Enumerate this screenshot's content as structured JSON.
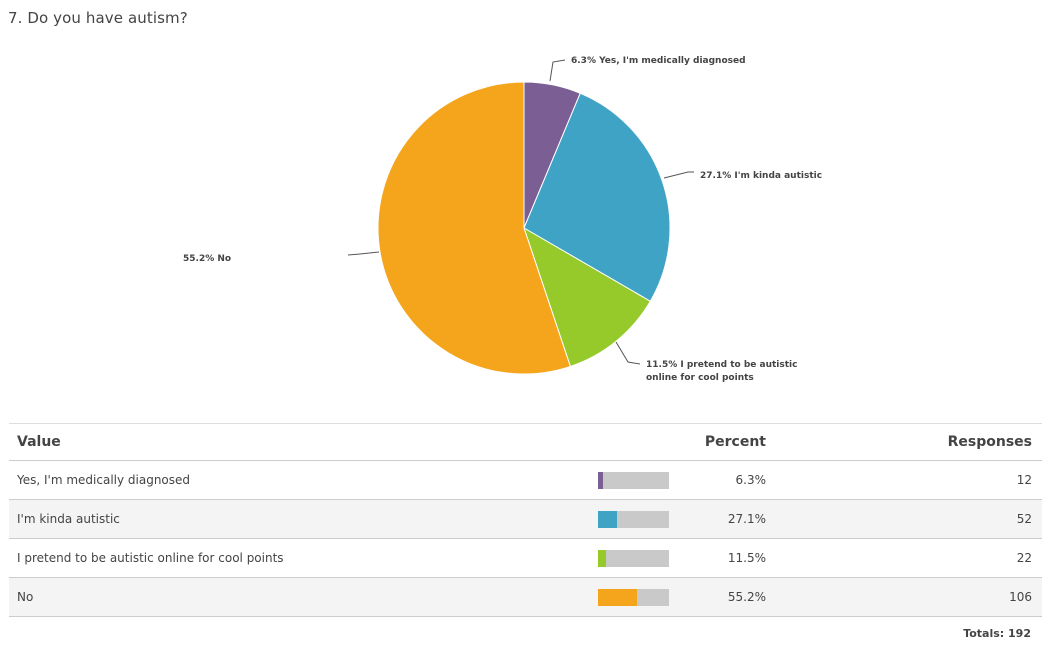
{
  "question": {
    "title": "7. Do you have autism?"
  },
  "chart_data": {
    "type": "pie",
    "slices": [
      {
        "label": "Yes, I'm medically diagnosed",
        "percent": 6.3,
        "display": "6.3% Yes, I'm medically diagnosed",
        "color": "#7b5e93"
      },
      {
        "label": "I'm kinda autistic",
        "percent": 27.1,
        "display": "27.1% I'm kinda autistic",
        "color": "#3ea3c5"
      },
      {
        "label": "I pretend to be autistic online for cool points",
        "percent": 11.5,
        "display_lines": [
          "11.5% I pretend to be autistic",
          "online for cool points"
        ],
        "color": "#96c92a"
      },
      {
        "label": "No",
        "percent": 55.2,
        "display": "55.2% No",
        "color": "#f4a51c"
      }
    ]
  },
  "table": {
    "headers": {
      "value": "Value",
      "percent": "Percent",
      "responses": "Responses"
    },
    "rows": [
      {
        "value": "Yes, I'm medically diagnosed",
        "percent": "6.3%",
        "responses": "12",
        "fill": 6.3,
        "color": "#7b5e93"
      },
      {
        "value": "I'm kinda autistic",
        "percent": "27.1%",
        "responses": "52",
        "fill": 27.1,
        "color": "#3ea3c5"
      },
      {
        "value": "I pretend to be autistic online for cool points",
        "percent": "11.5%",
        "responses": "22",
        "fill": 11.5,
        "color": "#96c92a"
      },
      {
        "value": "No",
        "percent": "55.2%",
        "responses": "106",
        "fill": 55.2,
        "color": "#f4a51c"
      }
    ],
    "totals": "Totals: 192"
  }
}
